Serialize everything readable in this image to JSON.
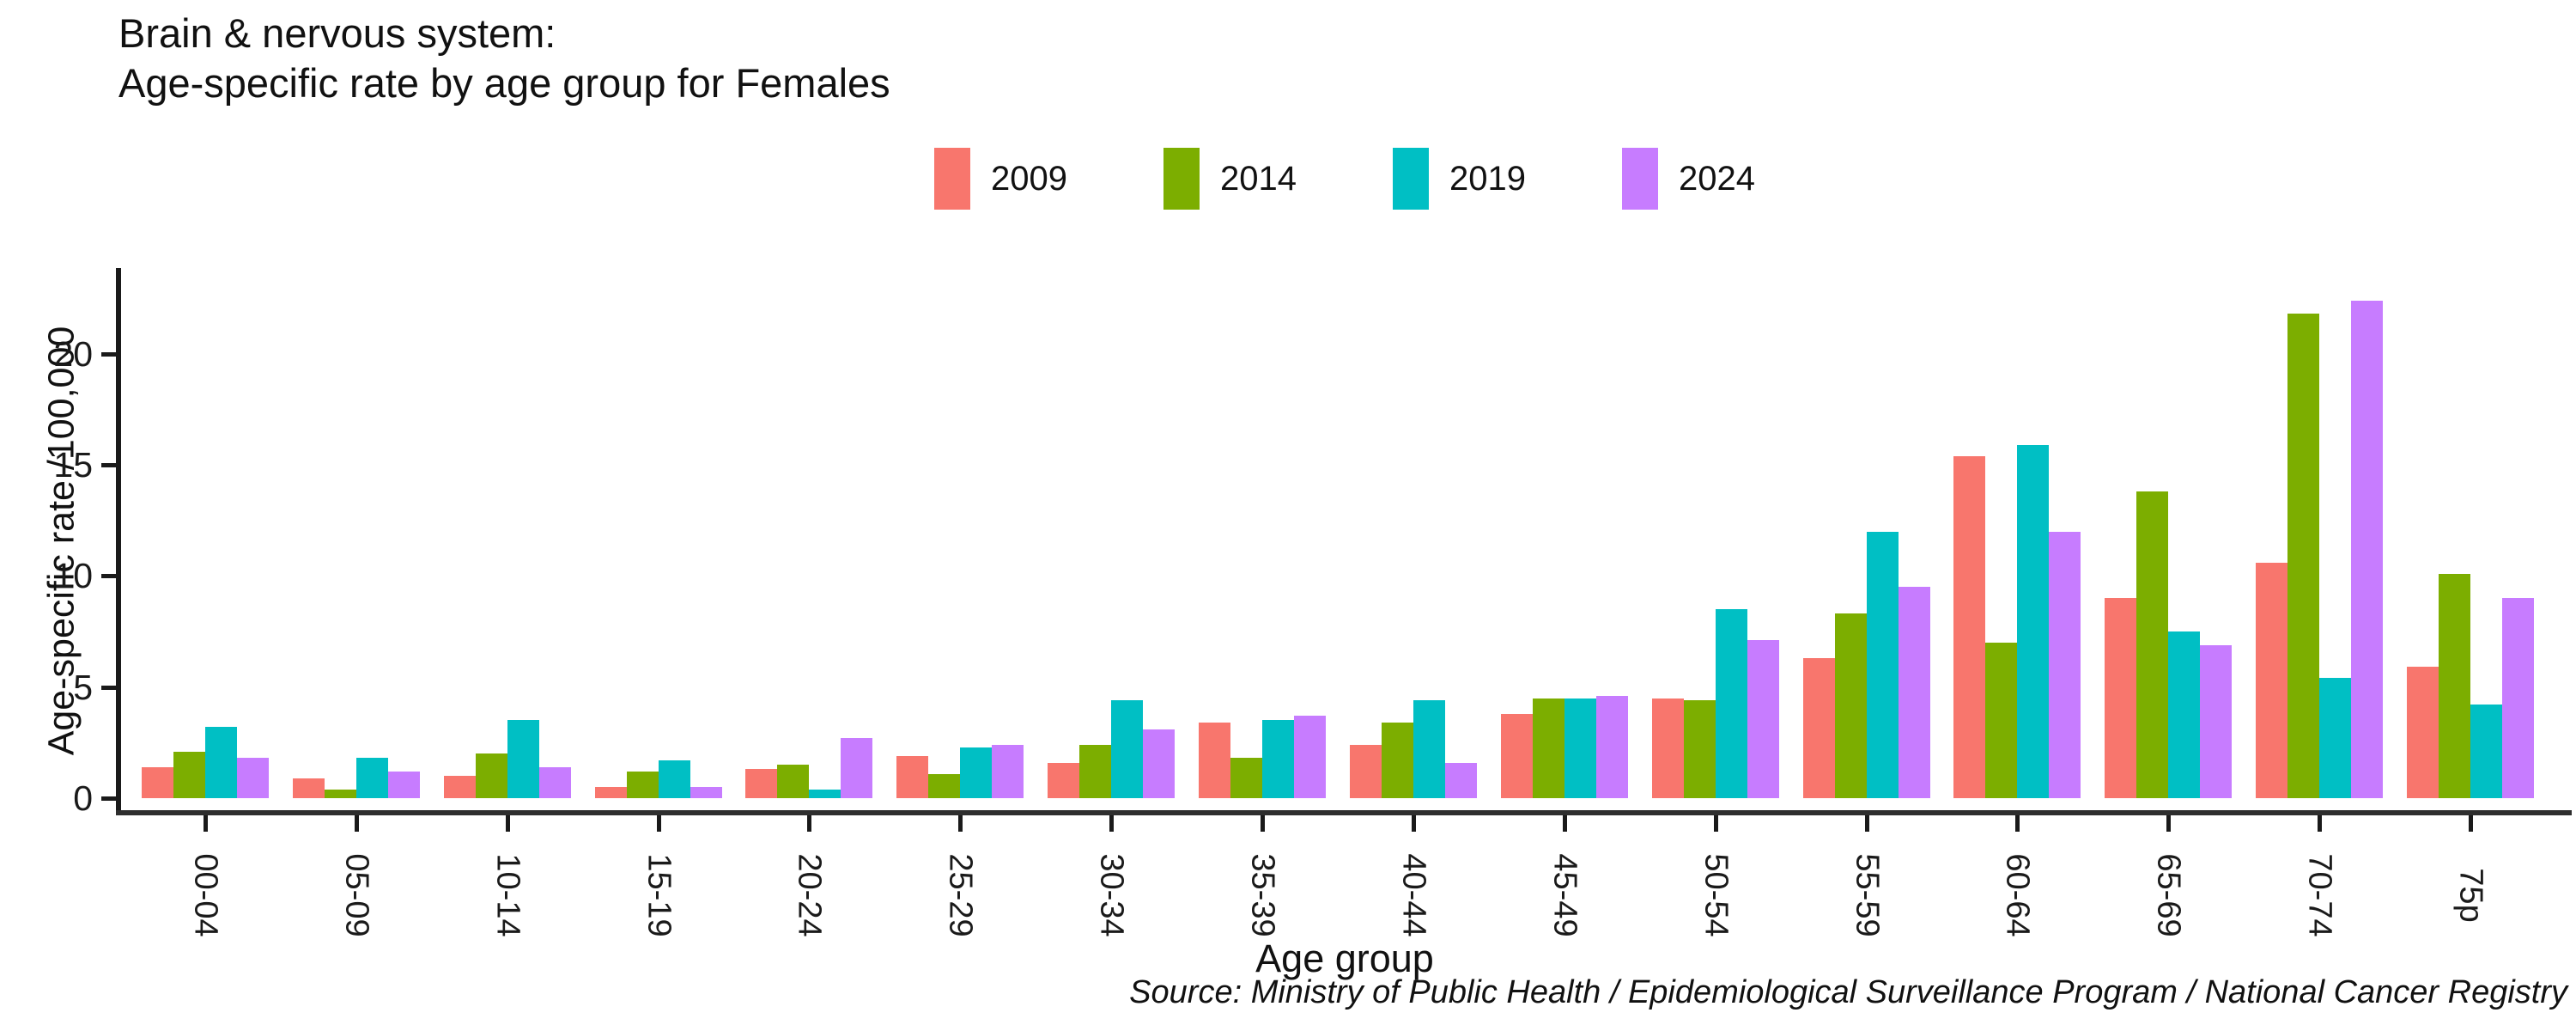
{
  "title": {
    "line1": "Brain & nervous system:",
    "line2": "Age-specific rate by age group for Females"
  },
  "axes": {
    "y_label": "Age-specific rate /100,000",
    "x_label": "Age group",
    "y_ticks": [
      0,
      5,
      10,
      15,
      20
    ]
  },
  "source": "Source: Ministry of Public Health / Epidemiological Surveillance Program / National Cancer Registry",
  "chart_data": {
    "type": "bar",
    "title": "Brain & nervous system: Age-specific rate by age group for Females",
    "xlabel": "Age group",
    "ylabel": "Age-specific rate /100,000",
    "ylim": [
      0,
      23.6
    ],
    "yticks": [
      0,
      5,
      10,
      15,
      20
    ],
    "grid": false,
    "legend_position": "top-center",
    "categories": [
      "00-04",
      "05-09",
      "10-14",
      "15-19",
      "20-24",
      "25-29",
      "30-34",
      "35-39",
      "40-44",
      "45-49",
      "50-54",
      "55-59",
      "60-64",
      "65-69",
      "70-74",
      "75p"
    ],
    "series": [
      {
        "name": "2009",
        "color": "#F8766D",
        "values": [
          1.4,
          0.9,
          1.0,
          0.5,
          1.3,
          1.9,
          1.6,
          3.4,
          2.4,
          3.8,
          4.5,
          6.3,
          15.4,
          9.0,
          10.6,
          5.9
        ]
      },
      {
        "name": "2014",
        "color": "#7CAE00",
        "values": [
          2.1,
          0.4,
          2.0,
          1.2,
          1.5,
          1.1,
          2.4,
          1.8,
          3.4,
          4.5,
          4.4,
          8.3,
          7.0,
          13.8,
          21.8,
          10.1
        ]
      },
      {
        "name": "2019",
        "color": "#00BFC4",
        "values": [
          3.2,
          1.8,
          3.5,
          1.7,
          0.4,
          2.3,
          4.4,
          3.5,
          4.4,
          4.5,
          8.5,
          12.0,
          15.9,
          7.5,
          5.4,
          4.2
        ]
      },
      {
        "name": "2024",
        "color": "#C77CFF",
        "values": [
          1.8,
          1.2,
          1.4,
          0.5,
          2.7,
          2.4,
          3.1,
          3.7,
          1.6,
          4.6,
          7.1,
          9.5,
          12.0,
          6.9,
          22.4,
          9.0
        ]
      }
    ]
  }
}
